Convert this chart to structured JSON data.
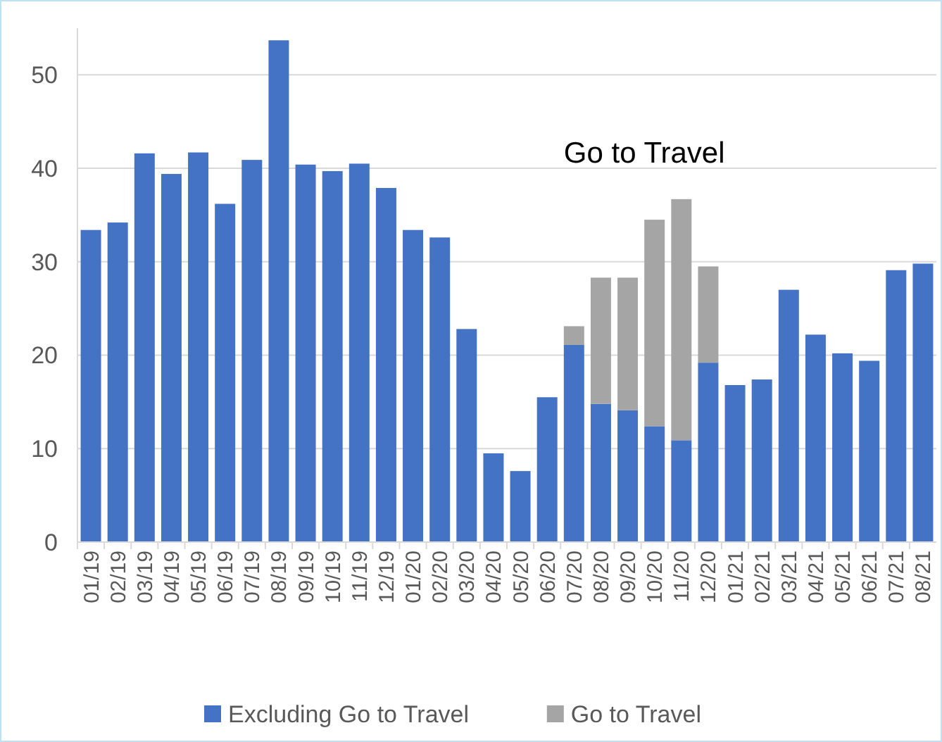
{
  "chart_data": {
    "type": "bar",
    "stacked": true,
    "categories": [
      "01/19",
      "02/19",
      "03/19",
      "04/19",
      "05/19",
      "06/19",
      "07/19",
      "08/19",
      "09/19",
      "10/19",
      "11/19",
      "12/19",
      "01/20",
      "02/20",
      "03/20",
      "04/20",
      "05/20",
      "06/20",
      "07/20",
      "08/20",
      "09/20",
      "10/20",
      "11/20",
      "12/20",
      "01/21",
      "02/21",
      "03/21",
      "04/21",
      "05/21",
      "06/21",
      "07/21",
      "08/21"
    ],
    "series": [
      {
        "name": "Excluding Go to Travel",
        "color": "#4472c4",
        "values": [
          33.4,
          34.2,
          41.6,
          39.4,
          41.7,
          36.2,
          40.9,
          53.7,
          40.4,
          39.7,
          40.5,
          37.9,
          33.4,
          32.6,
          22.8,
          9.5,
          7.6,
          15.5,
          21.1,
          14.8,
          14.1,
          12.4,
          10.9,
          19.2,
          16.8,
          17.4,
          27.0,
          22.2,
          20.2,
          19.4,
          29.1,
          29.8
        ]
      },
      {
        "name": "Go to Travel",
        "color": "#a5a5a5",
        "values": [
          null,
          null,
          null,
          null,
          null,
          null,
          null,
          null,
          null,
          null,
          null,
          null,
          null,
          null,
          null,
          null,
          null,
          null,
          2.0,
          13.5,
          14.2,
          22.1,
          25.8,
          10.3,
          null,
          null,
          null,
          null,
          null,
          null,
          null,
          null
        ]
      }
    ],
    "ylim": [
      0,
      55
    ],
    "yticks": [
      0,
      10,
      20,
      30,
      40,
      50
    ],
    "grid": "y",
    "legend": "bottom",
    "annotations": [
      "Go to Travel"
    ]
  }
}
